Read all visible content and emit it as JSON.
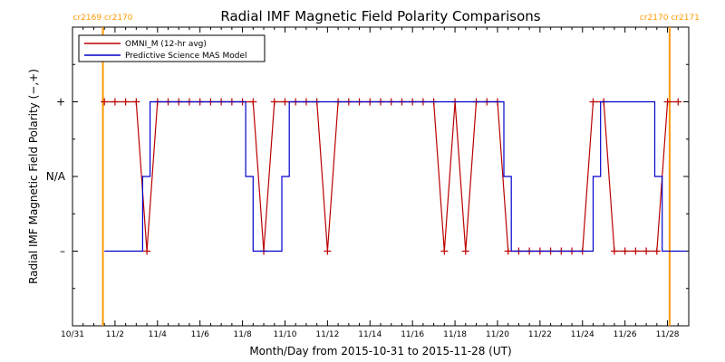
{
  "chart_data": {
    "type": "line",
    "title": "Radial IMF Magnetic Field Polarity Comparisons",
    "xlabel": "Month/Day from 2015-10-31 to 2015-11-28 (UT)",
    "ylabel": "Radial IMF Magnetic Field Polarity (−,+)",
    "x_unit": "days from 2015-10-31",
    "xlim": [
      0,
      29
    ],
    "ylim": [
      -2,
      2
    ],
    "x_ticks": [
      {
        "x": 0,
        "label": "10/31"
      },
      {
        "x": 2,
        "label": "11/2"
      },
      {
        "x": 4,
        "label": "11/4"
      },
      {
        "x": 6,
        "label": "11/6"
      },
      {
        "x": 8,
        "label": "11/8"
      },
      {
        "x": 10,
        "label": "11/10"
      },
      {
        "x": 12,
        "label": "11/12"
      },
      {
        "x": 14,
        "label": "11/14"
      },
      {
        "x": 16,
        "label": "11/16"
      },
      {
        "x": 18,
        "label": "11/18"
      },
      {
        "x": 20,
        "label": "11/20"
      },
      {
        "x": 22,
        "label": "11/22"
      },
      {
        "x": 24,
        "label": "11/24"
      },
      {
        "x": 26,
        "label": "11/26"
      },
      {
        "x": 28,
        "label": "11/28"
      }
    ],
    "y_ticks": [
      {
        "y": 1,
        "label": "+"
      },
      {
        "y": 0,
        "label": "N/A"
      },
      {
        "y": -1,
        "label": "–"
      }
    ],
    "carrington_markers": [
      {
        "x": 1.43,
        "label": "cr2169 cr2170",
        "color": "#ff9900"
      },
      {
        "x": 28.1,
        "label": "cr2170 cr2171",
        "color": "#ff9900"
      }
    ],
    "legend_position": "top-left",
    "series": [
      {
        "name": "OMNI_M (12-hr avg)",
        "color": "#bb0000",
        "marker": "plus",
        "x": [
          1.5,
          2.0,
          2.5,
          3.0,
          3.5,
          4.0,
          4.5,
          5.0,
          5.5,
          6.0,
          6.5,
          7.0,
          7.5,
          8.0,
          8.5,
          9.0,
          9.5,
          10.0,
          10.5,
          11.0,
          11.5,
          12.0,
          12.5,
          13.0,
          13.5,
          14.0,
          14.5,
          15.0,
          15.5,
          16.0,
          16.5,
          17.0,
          17.5,
          18.0,
          18.5,
          19.0,
          19.5,
          20.0,
          20.5,
          21.0,
          21.5,
          22.0,
          22.5,
          23.0,
          23.5,
          24.0,
          24.5,
          25.0,
          25.5,
          26.0,
          26.5,
          27.0,
          27.5,
          28.0,
          28.5
        ],
        "y": [
          1,
          1,
          1,
          1,
          -1,
          1,
          1,
          1,
          1,
          1,
          1,
          1,
          1,
          1,
          1,
          -1,
          1,
          1,
          1,
          1,
          1,
          -1,
          1,
          1,
          1,
          1,
          1,
          1,
          1,
          1,
          1,
          1,
          -1,
          1,
          -1,
          1,
          1,
          1,
          -1,
          -1,
          -1,
          -1,
          -1,
          -1,
          -1,
          -1,
          1,
          1,
          -1,
          -1,
          -1,
          -1,
          -1,
          1,
          1
        ]
      },
      {
        "name": "Predictive Science MAS Model",
        "color": "#0000cc",
        "marker": "none",
        "x": [
          1.5,
          3.3,
          3.3,
          3.65,
          3.65,
          8.15,
          8.15,
          8.5,
          8.5,
          9.85,
          9.85,
          10.2,
          10.2,
          20.3,
          20.3,
          20.65,
          20.65,
          24.5,
          24.5,
          24.85,
          24.85,
          27.4,
          27.4,
          27.75,
          27.75,
          28.9
        ],
        "y": [
          -1,
          -1,
          0,
          0,
          1,
          1,
          0,
          0,
          -1,
          -1,
          0,
          0,
          1,
          1,
          0,
          0,
          -1,
          -1,
          0,
          0,
          1,
          1,
          0,
          0,
          -1,
          -1
        ]
      }
    ]
  }
}
